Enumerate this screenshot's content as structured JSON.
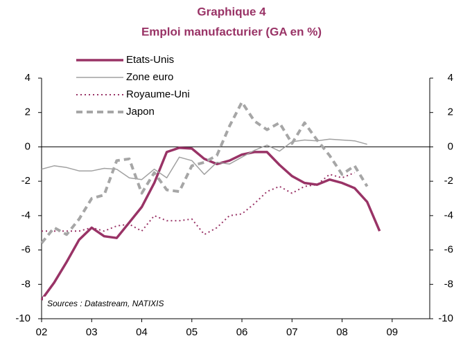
{
  "chart_data": {
    "type": "line",
    "title": "Graphique 4",
    "subtitle": "Emploi manufacturier (GA en %)",
    "annotation": "Sources : Datastream, NATIXIS",
    "x": [
      2002,
      2002.25,
      2002.5,
      2002.75,
      2003,
      2003.25,
      2003.5,
      2003.75,
      2004,
      2004.25,
      2004.5,
      2004.75,
      2005,
      2005.25,
      2005.5,
      2005.75,
      2006,
      2006.25,
      2006.5,
      2006.75,
      2007,
      2007.25,
      2007.5,
      2007.75,
      2008,
      2008.25,
      2008.5,
      2008.75
    ],
    "xlim": [
      2002,
      2009.75
    ],
    "xticks": [
      {
        "value": 2002,
        "label": "02"
      },
      {
        "value": 2003,
        "label": "03"
      },
      {
        "value": 2004,
        "label": "04"
      },
      {
        "value": 2005,
        "label": "05"
      },
      {
        "value": 2006,
        "label": "06"
      },
      {
        "value": 2007,
        "label": "07"
      },
      {
        "value": 2008,
        "label": "08"
      },
      {
        "value": 2009,
        "label": "09"
      }
    ],
    "ylim": [
      -10,
      4
    ],
    "yticks": [
      -10,
      -8,
      -6,
      -4,
      -2,
      0,
      2,
      4
    ],
    "y2lim": [
      -10,
      4
    ],
    "y2ticks": [
      -10,
      -8,
      -6,
      -4,
      -2,
      0,
      2,
      4
    ],
    "series": [
      {
        "name": "Etats-Unis",
        "color": "#993366",
        "style": "solid",
        "line_width": 3.5,
        "values": [
          -8.9,
          -7.9,
          -6.7,
          -5.4,
          -4.7,
          -5.2,
          -5.3,
          -4.4,
          -3.5,
          -2.1,
          -0.3,
          -0.05,
          -0.1,
          -0.7,
          -1.0,
          -0.8,
          -0.45,
          -0.3,
          -0.3,
          -1.05,
          -1.7,
          -2.1,
          -2.2,
          -1.9,
          -2.1,
          -2.4,
          -3.2,
          -4.9
        ]
      },
      {
        "name": "Zone euro",
        "color": "#a0a0a0",
        "style": "solid",
        "line_width": 1.5,
        "values": [
          -1.3,
          -1.1,
          -1.2,
          -1.4,
          -1.4,
          -1.25,
          -1.3,
          -1.8,
          -1.9,
          -1.3,
          -1.8,
          -0.6,
          -0.8,
          -1.6,
          -0.9,
          -1.0,
          -0.6,
          -0.2,
          0.1,
          -0.25,
          0.3,
          0.4,
          0.35,
          0.45,
          0.4,
          0.35,
          0.15,
          null
        ]
      },
      {
        "name": "Royaume-Uni",
        "color": "#993366",
        "style": "dotted",
        "line_width": 2,
        "values": [
          -4.9,
          -4.9,
          -4.9,
          -4.9,
          -4.7,
          -4.9,
          -4.6,
          -4.5,
          -4.9,
          -4.0,
          -4.3,
          -4.3,
          -4.2,
          -5.1,
          -4.7,
          -4.0,
          -3.9,
          -3.3,
          -2.6,
          -2.3,
          -2.7,
          -2.3,
          -2.2,
          -1.6,
          -1.8,
          -1.5,
          null,
          null
        ]
      },
      {
        "name": "Japon",
        "color": "#a6a6a6",
        "style": "dashed",
        "line_width": 4,
        "values": [
          -5.6,
          -4.7,
          -5.1,
          -4.2,
          -3.0,
          -2.8,
          -0.8,
          -0.7,
          -2.7,
          -1.5,
          -2.5,
          -2.6,
          -1.1,
          -0.9,
          -0.5,
          1.2,
          2.6,
          1.5,
          1.0,
          1.4,
          0.2,
          1.4,
          0.4,
          -0.5,
          -1.6,
          -1.1,
          -2.3,
          null
        ]
      }
    ]
  }
}
